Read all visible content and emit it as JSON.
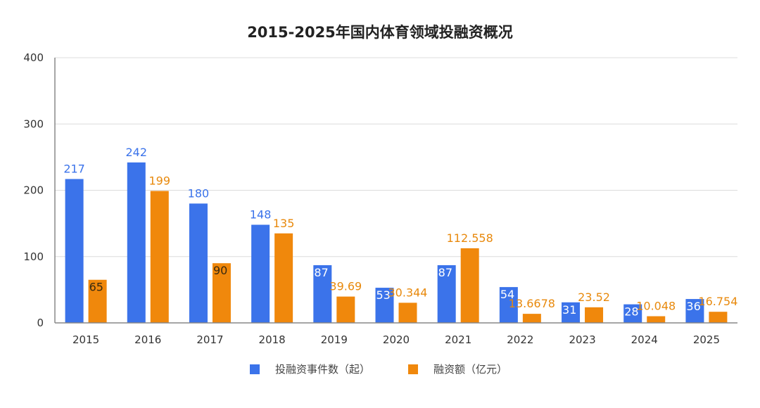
{
  "chart_data": {
    "type": "bar",
    "title": "2015-2025年国内体育领域投融资概况",
    "categories": [
      "2015",
      "2016",
      "2017",
      "2018",
      "2019",
      "2020",
      "2021",
      "2022",
      "2023",
      "2024",
      "2025"
    ],
    "series": [
      {
        "name": "投融资事件数（起）",
        "color": "#3b73ea",
        "values": [
          217,
          242,
          180,
          148,
          87,
          53,
          87,
          54,
          31,
          28,
          36
        ],
        "labels": [
          "217",
          "242",
          "180",
          "148",
          "87",
          "53",
          "87",
          "54",
          "31",
          "28",
          "36"
        ]
      },
      {
        "name": "融资额（亿元）",
        "color": "#f0880c",
        "values": [
          65,
          199,
          90,
          135,
          39.69,
          30.344,
          112.558,
          13.6678,
          23.52,
          10.048,
          16.754
        ],
        "labels": [
          "65",
          "199",
          "90",
          "135",
          "39.69",
          "30.344",
          "112.558",
          "13.6678",
          "23.52",
          "10.048",
          "16.754"
        ]
      }
    ],
    "yticks": [
      "0",
      "100",
      "200",
      "300",
      "400"
    ],
    "ylim": [
      0,
      400
    ],
    "grid": true,
    "legend_position": "bottom"
  }
}
